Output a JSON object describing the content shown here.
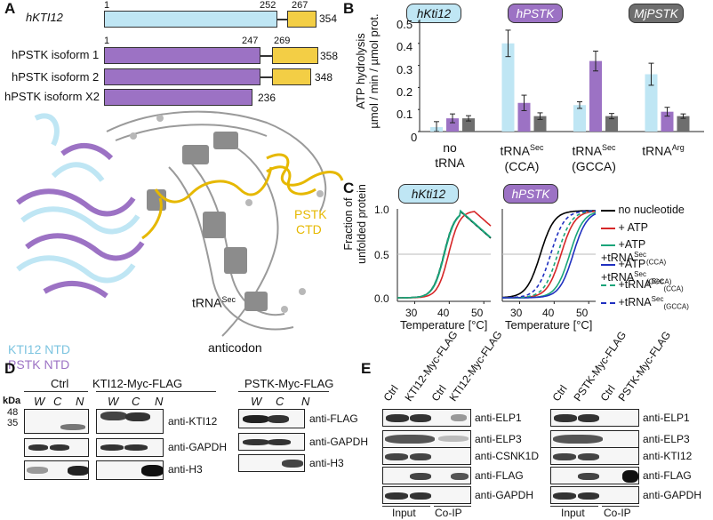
{
  "panels": {
    "a": "A",
    "b": "B",
    "c": "C",
    "d": "D",
    "e": "E"
  },
  "panel_a": {
    "rows": [
      {
        "name": "hKTI12",
        "start": "1",
        "mid1": "252",
        "mid2": "267",
        "end": "354"
      },
      {
        "name": "hPSTK isoform 1",
        "start": "1",
        "mid1": "247",
        "mid2": "269",
        "end": "358"
      },
      {
        "name": "hPSTK isoform 2",
        "end": "348"
      },
      {
        "name": "hPSTK isoform X2",
        "end": "236"
      }
    ],
    "structure_labels": {
      "kti12_ntd": "KTI12 NTD",
      "pstk_ntd": "PSTK NTD",
      "pstk_ctd_1": "PSTK",
      "pstk_ctd_2": "CTD",
      "trna": "tRNA",
      "trna_sup": "Sec",
      "anticodon": "anticodon"
    },
    "colors": {
      "cyan": "#bfe6f4",
      "gold": "#f3ce45",
      "purple": "#9c72c4",
      "gray": "#6e6e6e"
    }
  },
  "panel_b": {
    "headers": [
      "hKti12",
      "hPSTK",
      "MjPSTK"
    ],
    "ylabel_1": "ATP hydrolysis",
    "ylabel_2": "µmol / min / µmol prot.",
    "yticks": [
      "0.5",
      "0.4",
      "0.3",
      "0.2",
      "0.1",
      "0"
    ],
    "groups": [
      {
        "l1": "no",
        "l2": "tRNA"
      },
      {
        "l1": "tRNA",
        "sup": "Sec",
        "l2": "(CCA)"
      },
      {
        "l1": "tRNA",
        "sup": "Sec",
        "l2": "(GCCA)"
      },
      {
        "l1": "tRNA",
        "sup": "Arg",
        "l2": ""
      }
    ]
  },
  "chart_data": [
    {
      "type": "bar",
      "categories": [
        "no tRNA",
        "tRNASec (CCA)",
        "tRNASec (GCCA)",
        "tRNAArg"
      ],
      "ylabel": "ATP hydrolysis µmol / min / µmol prot.",
      "ylim": [
        0,
        0.5
      ],
      "series": [
        {
          "name": "hKti12",
          "color": "#bfe6f4",
          "values": [
            0.02,
            0.4,
            0.12,
            0.26
          ],
          "errors": [
            0.025,
            0.06,
            0.015,
            0.05
          ]
        },
        {
          "name": "hPSTK",
          "color": "#9c72c4",
          "values": [
            0.06,
            0.13,
            0.32,
            0.09
          ],
          "errors": [
            0.02,
            0.035,
            0.045,
            0.02
          ]
        },
        {
          "name": "MjPSTK",
          "color": "#6e6e6e",
          "values": [
            0.06,
            0.07,
            0.07,
            0.07
          ],
          "errors": [
            0.012,
            0.015,
            0.012,
            0.01
          ]
        }
      ]
    },
    {
      "type": "line",
      "title": "hKti12",
      "xlabel": "Temperature [°C]",
      "ylabel": "Fraction of unfolded protein",
      "xlim": [
        25,
        52
      ],
      "ylim": [
        0,
        1
      ],
      "xticks": [
        "30",
        "40",
        "50"
      ],
      "yticks": [
        "0.0",
        "0.5",
        "1.0"
      ],
      "series": [
        {
          "name": "no nucleotide",
          "color": "#000000",
          "tm": 38.5,
          "peak": 43.0,
          "style": "solid"
        },
        {
          "name": "+ ATP",
          "color": "#d62728",
          "tm": 39.8,
          "peak": 47.0,
          "style": "solid"
        },
        {
          "name": "+ATP +tRNASec(CCA)",
          "color": "#1aa57a",
          "tm": 38.6,
          "peak": 43.2,
          "style": "solid"
        },
        {
          "name": "+tRNASec(CCA)",
          "color": "#1aa57a",
          "tm": 38.4,
          "peak": 43.0,
          "style": "dashed"
        }
      ]
    },
    {
      "type": "line",
      "title": "hPSTK",
      "xlabel": "Temperature [°C]",
      "xlim": [
        25,
        52
      ],
      "ylim": [
        0,
        1
      ],
      "xticks": [
        "30",
        "40",
        "50"
      ],
      "series": [
        {
          "name": "no nucleotide",
          "color": "#000000",
          "tm": 36.0,
          "style": "solid"
        },
        {
          "name": "+ ATP",
          "color": "#d62728",
          "tm": 42.0,
          "style": "solid"
        },
        {
          "name": "+ATP +tRNASec(CCA)",
          "color": "#1aa57a",
          "tm": 44.5,
          "style": "solid"
        },
        {
          "name": "+ATP +tRNASec(GCCA)",
          "color": "#2030c0",
          "tm": 45.5,
          "style": "solid"
        },
        {
          "name": "+tRNASec(CCA)",
          "color": "#1aa57a",
          "tm": 41.0,
          "style": "dashed"
        },
        {
          "name": "+tRNASec(GCCA)",
          "color": "#2030c0",
          "tm": 39.0,
          "style": "dashed"
        }
      ]
    }
  ],
  "panel_c": {
    "ylabel_1": "Fraction of",
    "ylabel_2": "unfolded protein",
    "legend": [
      {
        "text": "no nucleotide",
        "sup": "",
        "sub": ""
      },
      {
        "text": "+ ATP",
        "sup": "",
        "sub": ""
      },
      {
        "text": "+ATP +tRNA",
        "sup": "Sec",
        "sub": "(CCA)"
      },
      {
        "text": "+ATP +tRNA",
        "sup": "Sec",
        "sub": "(GCCA)"
      },
      {
        "text": "+tRNA",
        "sup": "Sec",
        "sub": "(CCA)"
      },
      {
        "text": "+tRNA",
        "sup": "Sec",
        "sub": "(GCCA)"
      }
    ]
  },
  "panel_d": {
    "kda": "kDa",
    "markers": [
      "48",
      "35"
    ],
    "group1": "Ctrl",
    "group2": "KTI12-Myc-FLAG",
    "group3": "PSTK-Myc-FLAG",
    "lanes": [
      "W",
      "C",
      "N"
    ],
    "blots_left": [
      "anti-KTI12",
      "anti-GAPDH",
      "anti-H3"
    ],
    "blots_right": [
      "anti-FLAG",
      "anti-GAPDH",
      "anti-H3"
    ]
  },
  "panel_e": {
    "left_cols": [
      "Ctrl",
      "KTI12-Myc-FLAG",
      "Ctrl",
      "KTI12-Myc-FLAG"
    ],
    "right_cols": [
      "Ctrl",
      "PSTK-Myc-FLAG",
      "Ctrl",
      "PSTK-Myc-FLAG"
    ],
    "left_blots": [
      "anti-ELP1",
      "anti-ELP3",
      "anti-CSNK1D",
      "anti-FLAG",
      "anti-GAPDH"
    ],
    "right_blots": [
      "anti-ELP1",
      "anti-ELP3",
      "anti-KTI12",
      "anti-FLAG",
      "anti-GAPDH"
    ],
    "input": "Input",
    "coip": "Co-IP"
  }
}
